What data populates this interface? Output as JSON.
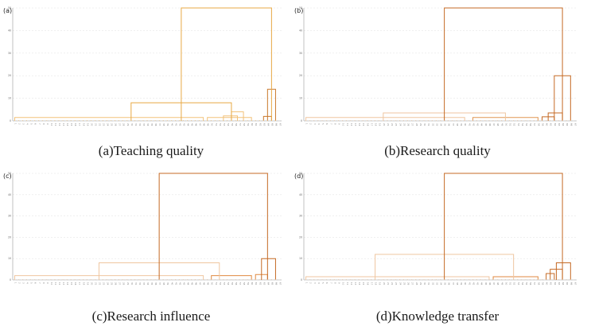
{
  "chart_data": [
    {
      "type": "dendrogram",
      "panel_label": "(a)",
      "caption": "(a)Teaching quality",
      "ylim": [
        0,
        50
      ],
      "yticks": [
        0,
        10,
        20,
        30,
        40,
        50
      ],
      "leaf_count": 67,
      "colors": {
        "low": "#f2c27a",
        "mid": "#e8a945",
        "high": "#c9782a"
      },
      "links": [
        {
          "x1": 1,
          "x2": 48,
          "height": 1.5,
          "color": "#f2c27a"
        },
        {
          "x1": 49,
          "x2": 60,
          "height": 1.5,
          "color": "#f2c27a"
        },
        {
          "x1": 55,
          "x2": 58,
          "height": 4,
          "color": "#f2c27a"
        },
        {
          "x1": 53,
          "x2": 56.5,
          "height": 2.2,
          "color": "#f2c27a"
        },
        {
          "x1": 30,
          "x2": 55,
          "height": 8,
          "color": "#e8a945"
        },
        {
          "x1": 63,
          "x2": 65,
          "height": 2,
          "color": "#c9782a"
        },
        {
          "x1": 64,
          "x2": 66,
          "height": 14,
          "color": "#c9782a"
        },
        {
          "x1": 42.5,
          "x2": 65,
          "height": 50,
          "color": "#e8a945"
        }
      ]
    },
    {
      "type": "dendrogram",
      "panel_label": "(b)",
      "caption": "(b)Research quality",
      "ylim": [
        0,
        50
      ],
      "yticks": [
        0,
        10,
        20,
        30,
        40,
        50
      ],
      "leaf_count": 67,
      "colors": {
        "low": "#efc6a0",
        "mid": "#e09552",
        "high": "#c56a24"
      },
      "links": [
        {
          "x1": 1,
          "x2": 40,
          "height": 1.5,
          "color": "#efc6a0"
        },
        {
          "x1": 42,
          "x2": 58,
          "height": 1.5,
          "color": "#e09552"
        },
        {
          "x1": 20,
          "x2": 50,
          "height": 3.5,
          "color": "#efc6a0"
        },
        {
          "x1": 59,
          "x2": 62,
          "height": 1.8,
          "color": "#c56a24"
        },
        {
          "x1": 60.5,
          "x2": 64,
          "height": 3.5,
          "color": "#c56a24"
        },
        {
          "x1": 62,
          "x2": 66,
          "height": 20,
          "color": "#c56a24"
        },
        {
          "x1": 35,
          "x2": 64,
          "height": 50,
          "color": "#c56a24"
        }
      ]
    },
    {
      "type": "dendrogram",
      "panel_label": "(c)",
      "caption": "(c)Research influence",
      "ylim": [
        0,
        50
      ],
      "yticks": [
        0,
        10,
        20,
        30,
        40,
        50
      ],
      "leaf_count": 67,
      "colors": {
        "low": "#efc6a0",
        "mid": "#e08a40",
        "high": "#c56a24"
      },
      "links": [
        {
          "x1": 1,
          "x2": 48,
          "height": 2,
          "color": "#efc6a0"
        },
        {
          "x1": 50,
          "x2": 60,
          "height": 2,
          "color": "#e08a40"
        },
        {
          "x1": 22,
          "x2": 52,
          "height": 8,
          "color": "#efc6a0"
        },
        {
          "x1": 61,
          "x2": 64,
          "height": 2.5,
          "color": "#e08a40"
        },
        {
          "x1": 62.5,
          "x2": 66,
          "height": 10,
          "color": "#c56a24"
        },
        {
          "x1": 37,
          "x2": 64,
          "height": 50,
          "color": "#c56a24"
        }
      ]
    },
    {
      "type": "dendrogram",
      "panel_label": "(d)",
      "caption": "(d)Knowledge transfer",
      "ylim": [
        0,
        50
      ],
      "yticks": [
        0,
        10,
        20,
        30,
        40,
        50
      ],
      "leaf_count": 67,
      "colors": {
        "low": "#efc6a0",
        "mid": "#e08a40",
        "high": "#c56a24"
      },
      "links": [
        {
          "x1": 1,
          "x2": 46,
          "height": 1.5,
          "color": "#efc6a0"
        },
        {
          "x1": 47,
          "x2": 58,
          "height": 1.5,
          "color": "#e08a40"
        },
        {
          "x1": 18,
          "x2": 52,
          "height": 12,
          "color": "#efc6a0"
        },
        {
          "x1": 60,
          "x2": 62,
          "height": 3,
          "color": "#c56a24"
        },
        {
          "x1": 61,
          "x2": 64,
          "height": 5,
          "color": "#c56a24"
        },
        {
          "x1": 62.5,
          "x2": 66,
          "height": 8,
          "color": "#c56a24"
        },
        {
          "x1": 35,
          "x2": 64,
          "height": 50,
          "color": "#c56a24"
        }
      ]
    }
  ]
}
